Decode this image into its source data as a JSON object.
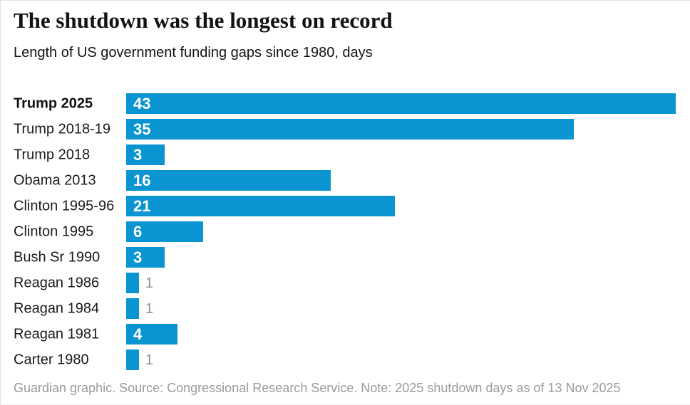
{
  "header": {
    "title": "The shutdown was the longest on record",
    "subtitle": "Length of US government funding gaps since 1980, days"
  },
  "chart_data": {
    "type": "bar",
    "orientation": "horizontal",
    "title": "The shutdown was the longest on record",
    "subtitle": "Length of US government funding gaps since 1980, days",
    "unit": "days",
    "categories": [
      "Trump 2025",
      "Trump 2018-19",
      "Trump 2018",
      "Obama 2013",
      "Clinton 1995-96",
      "Clinton 1995",
      "Bush Sr 1990",
      "Reagan 1986",
      "Reagan 1984",
      "Reagan 1981",
      "Carter 1980"
    ],
    "values": [
      43,
      35,
      3,
      16,
      21,
      6,
      3,
      1,
      1,
      4,
      1
    ],
    "xlim": [
      0,
      43
    ],
    "grid": false,
    "legend": false,
    "emphasized_category": "Trump 2025",
    "inside_label_min": 3,
    "bar_color": "#0b94d2",
    "inside_value_color": "#ffffff",
    "outside_value_color": "#8f8f8f"
  },
  "footer": {
    "credit": "Guardian graphic. Source: Congressional Research Service. Note: 2025 shutdown days as of 13 Nov 2025"
  }
}
